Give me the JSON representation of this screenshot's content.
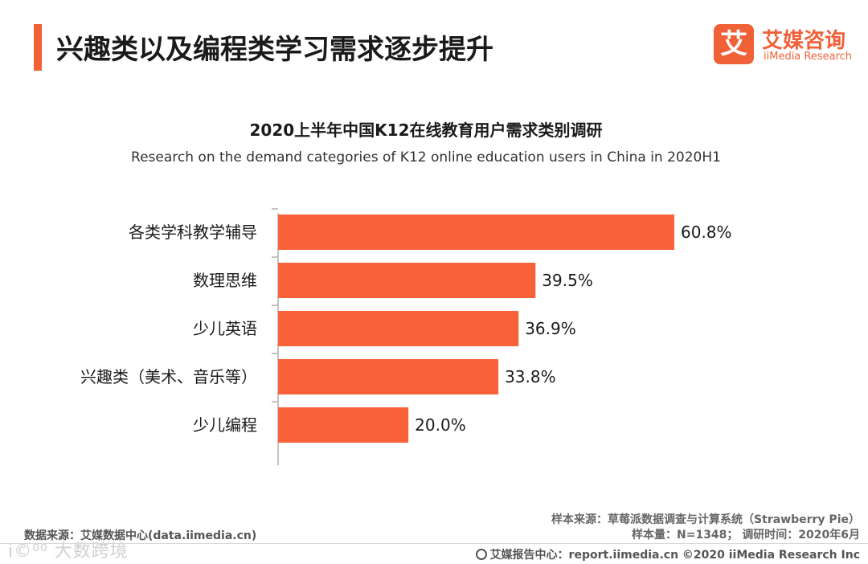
{
  "header": {
    "title": "兴趣类以及编程类学习需求逐步提升",
    "accent_color": "#f06138"
  },
  "logo": {
    "mark": "艾",
    "name": "艾媒咨询",
    "sub": "iiMedia Research"
  },
  "chart_data": {
    "type": "bar",
    "orientation": "horizontal",
    "title": "2020上半年中国K12在线教育用户需求类别调研",
    "subtitle": "Research on the demand categories of K12 online education users in China in 2020H1",
    "categories": [
      "各类学科教学辅导",
      "数理思维",
      "少儿英语",
      "兴趣类（美术、音乐等）",
      "少儿编程"
    ],
    "values": [
      60.8,
      39.5,
      36.9,
      33.8,
      20.0
    ],
    "value_labels": [
      "60.8%",
      "39.5%",
      "36.9%",
      "33.8%",
      "20.0%"
    ],
    "unit": "%",
    "xlim": [
      0,
      60.8
    ],
    "bar_color": "#f96238",
    "xlabel": "",
    "ylabel": ""
  },
  "footer": {
    "source_left": "数据来源：艾媒数据中心(data.iimedia.cn)",
    "sample_source": "样本来源：草莓派数据调查与计算系统（Strawberry Pie）",
    "sample_size": "样本量：N=1348；  调研时间：2020年6月",
    "report_center": "艾媒报告中心：report.iimedia.cn  ©2020  iiMedia Research  Inc",
    "watermark": "i©⁰⁰ 大数跨境"
  }
}
